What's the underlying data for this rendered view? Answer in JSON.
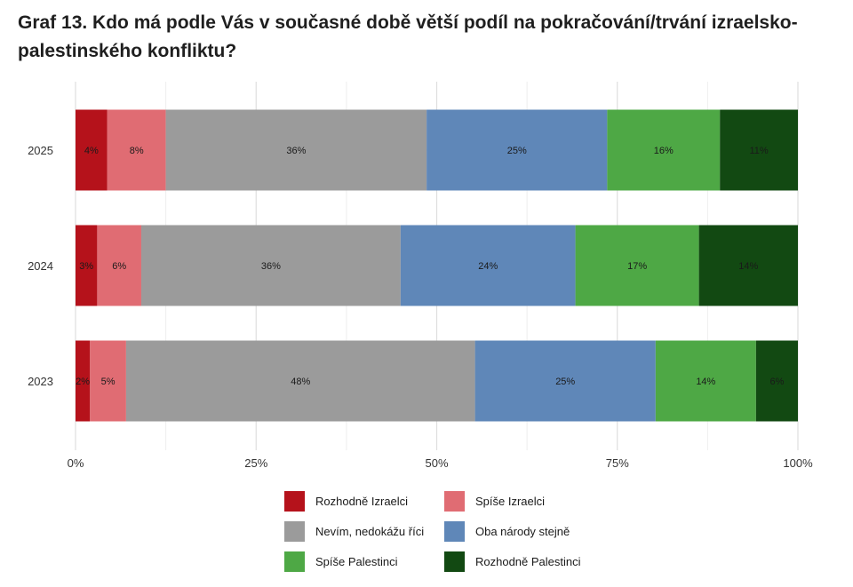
{
  "title": "Graf 13. Kdo má podle Vás v současné době větší podíl na pokračování/trvání izraelsko-palestinského konfliktu?",
  "chart_data": {
    "type": "bar",
    "orientation": "horizontal",
    "stacked": true,
    "categories": [
      "2025",
      "2024",
      "2023"
    ],
    "series": [
      {
        "name": "Rozhodně Izraelci",
        "color": "#b5121b",
        "values": [
          4.4,
          3.0,
          2.0
        ],
        "labels": [
          "4%",
          "3%",
          "2%"
        ]
      },
      {
        "name": "Spíše Izraelci",
        "color": "#e06c73",
        "values": [
          8.1,
          6.1,
          5.0
        ],
        "labels": [
          "8%",
          "6%",
          "5%"
        ]
      },
      {
        "name": "Nevím, nedokážu říci",
        "color": "#9b9b9b",
        "values": [
          36.1,
          35.9,
          48.3
        ],
        "labels": [
          "36%",
          "36%",
          "48%"
        ]
      },
      {
        "name": "Oba národy stejně",
        "color": "#5f87b8",
        "values": [
          25.0,
          24.2,
          25.0
        ],
        "labels": [
          "25%",
          "24%",
          "25%"
        ]
      },
      {
        "name": "Spíše Palestinci",
        "color": "#4ea845",
        "values": [
          15.6,
          17.1,
          13.9
        ],
        "labels": [
          "16%",
          "17%",
          "14%"
        ]
      },
      {
        "name": "Rozhodně Palestinci",
        "color": "#124912",
        "values": [
          10.8,
          13.7,
          5.8
        ],
        "labels": [
          "11%",
          "14%",
          "6%"
        ]
      }
    ],
    "x_ticks": [
      "0%",
      "25%",
      "50%",
      "75%",
      "100%"
    ],
    "xlim": [
      0,
      100
    ],
    "grid": true,
    "legend_position": "bottom"
  }
}
